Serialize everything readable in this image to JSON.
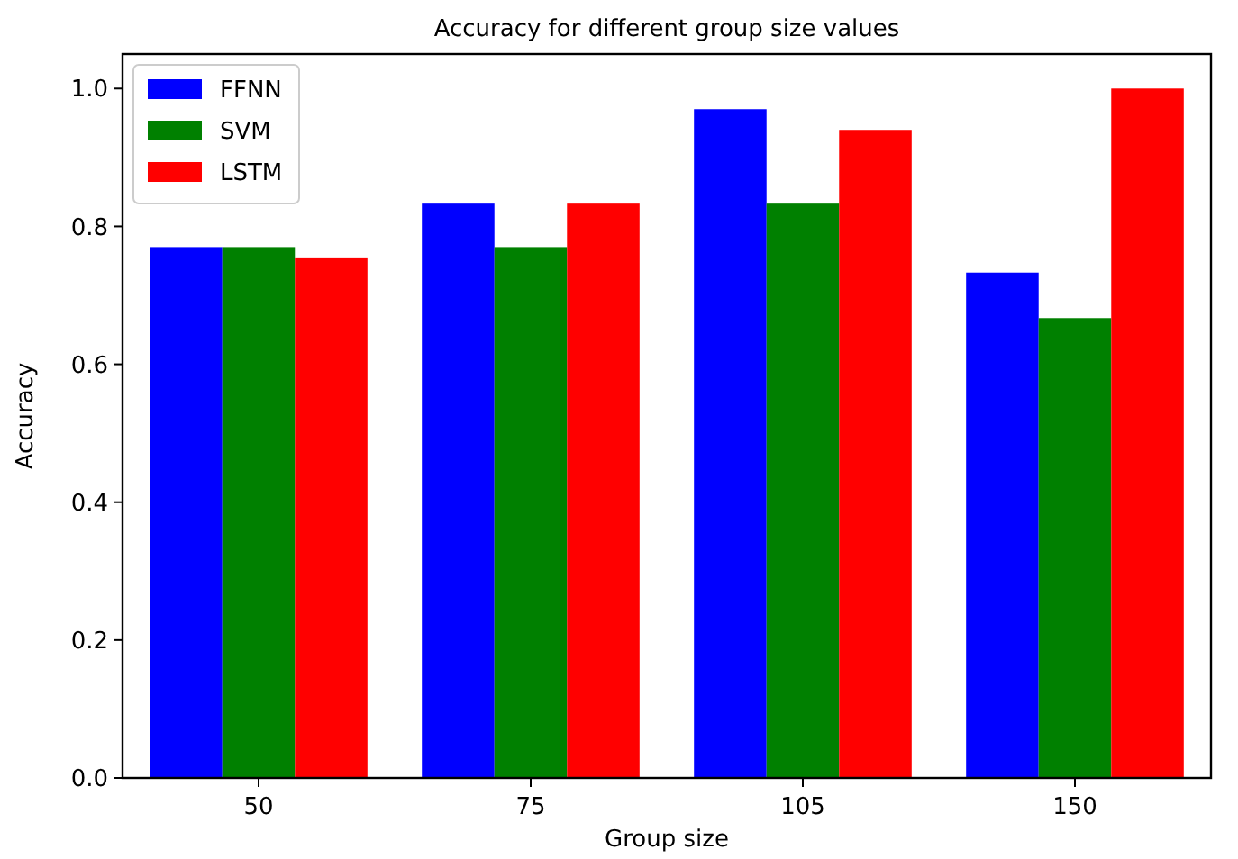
{
  "chart_data": {
    "type": "bar",
    "title": "Accuracy for different group size values",
    "xlabel": "Group size",
    "ylabel": "Accuracy",
    "categories": [
      "50",
      "75",
      "105",
      "150"
    ],
    "series": [
      {
        "name": "FFNN",
        "color": "#0000ff",
        "values": [
          0.77,
          0.833,
          0.97,
          0.733
        ]
      },
      {
        "name": "SVM",
        "color": "#008000",
        "values": [
          0.77,
          0.77,
          0.833,
          0.667
        ]
      },
      {
        "name": "LSTM",
        "color": "#ff0000",
        "values": [
          0.755,
          0.833,
          0.94,
          1.0
        ]
      }
    ],
    "ylim": [
      0,
      1.05
    ],
    "yticks": [
      {
        "value": 0,
        "label": "0.0"
      },
      0.2,
      0.4,
      0.6,
      0.8,
      {
        "value": 1,
        "label": "1.0"
      }
    ],
    "legend": "top left",
    "grid": false
  }
}
